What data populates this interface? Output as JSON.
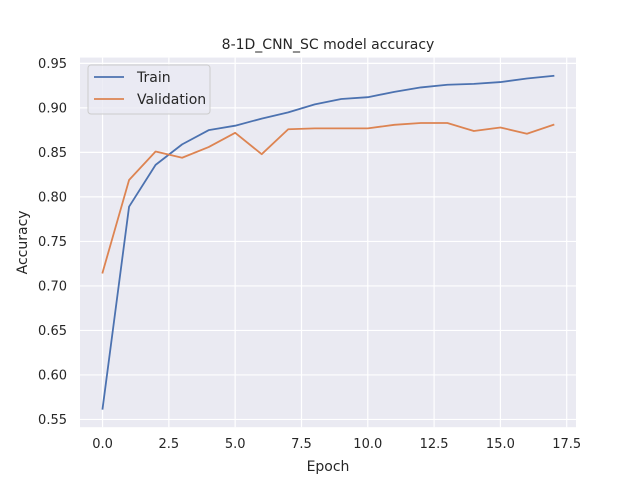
{
  "chart_data": {
    "type": "line",
    "title": "8-1D_CNN_SC model accuracy",
    "xlabel": "Epoch",
    "ylabel": "Accuracy",
    "xlim": [
      -0.85,
      17.85
    ],
    "ylim": [
      0.5413,
      0.9565
    ],
    "xticks": [
      0,
      2.5,
      5,
      7.5,
      10,
      12.5,
      15,
      17.5
    ],
    "xtick_labels": [
      "0.0",
      "2.5",
      "5.0",
      "7.5",
      "10.0",
      "12.5",
      "15.0",
      "17.5"
    ],
    "yticks": [
      0.55,
      0.6,
      0.65,
      0.7,
      0.75,
      0.8,
      0.85,
      0.9,
      0.95
    ],
    "ytick_labels": [
      "0.55",
      "0.60",
      "0.65",
      "0.70",
      "0.75",
      "0.80",
      "0.85",
      "0.90",
      "0.95"
    ],
    "grid": true,
    "legend_position": "top-left",
    "x": [
      0,
      1,
      2,
      3,
      4,
      5,
      6,
      7,
      8,
      9,
      10,
      11,
      12,
      13,
      14,
      15,
      16,
      17
    ],
    "series": [
      {
        "name": "Train",
        "color": "#4c72b0",
        "values": [
          0.562,
          0.789,
          0.836,
          0.859,
          0.875,
          0.88,
          0.888,
          0.895,
          0.904,
          0.91,
          0.912,
          0.918,
          0.923,
          0.926,
          0.927,
          0.929,
          0.933,
          0.936
        ]
      },
      {
        "name": "Validation",
        "color": "#dd8452",
        "values": [
          0.715,
          0.819,
          0.851,
          0.844,
          0.856,
          0.872,
          0.848,
          0.876,
          0.877,
          0.877,
          0.877,
          0.881,
          0.883,
          0.883,
          0.874,
          0.878,
          0.871,
          0.881
        ]
      }
    ]
  }
}
